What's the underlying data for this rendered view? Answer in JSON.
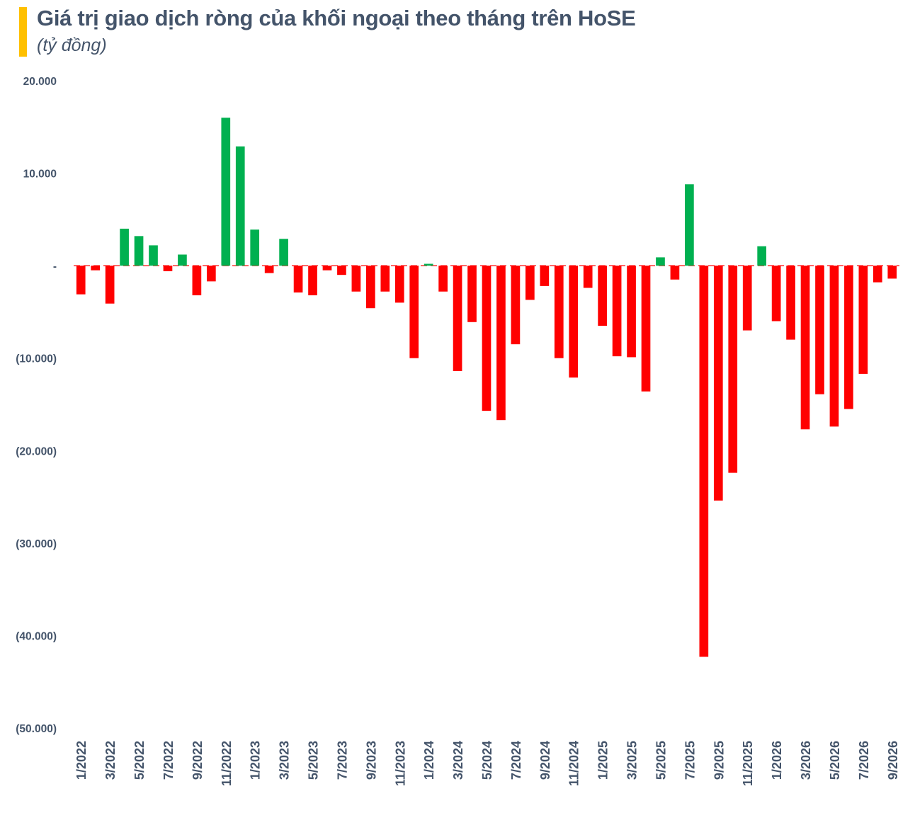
{
  "header": {
    "title": "Giá trị giao dịch ròng của khối ngoại theo tháng trên HoSE",
    "subtitle": "(tỷ đồng)"
  },
  "colors": {
    "accent_bar": "#FFC000",
    "positive": "#00B050",
    "negative": "#FF0000",
    "text": "#44546A"
  },
  "chart_data": {
    "type": "bar",
    "title": "Giá trị giao dịch ròng của khối ngoại theo tháng trên HoSE",
    "subtitle": "(tỷ đồng)",
    "ylim": [
      -50000,
      20000
    ],
    "yticks": [
      20000,
      10000,
      0,
      -10000,
      -20000,
      -30000,
      -40000,
      -50000
    ],
    "ytick_labels": [
      "20.000",
      "10.000",
      "-",
      "(10.000)",
      "(20.000)",
      "(30.000)",
      "(40.000)",
      "(50.000)"
    ],
    "grid": false,
    "legend": "none",
    "categories": [
      "1/2022",
      "2/2022",
      "3/2022",
      "4/2022",
      "5/2022",
      "6/2022",
      "7/2022",
      "8/2022",
      "9/2022",
      "10/2022",
      "11/2022",
      "12/2022",
      "1/2023",
      "2/2023",
      "3/2023",
      "4/2023",
      "5/2023",
      "6/2023",
      "7/2023",
      "8/2023",
      "9/2023",
      "10/2023",
      "11/2023",
      "12/2023",
      "1/2024",
      "2/2024",
      "3/2024",
      "4/2024",
      "5/2024",
      "6/2024",
      "7/2024",
      "8/2024",
      "9/2024",
      "10/2024",
      "11/2024",
      "12/2024",
      "1/2025",
      "2/2025",
      "3/2025",
      "4/2025",
      "5/2025",
      "6/2025",
      "7/2025",
      "8/2025",
      "9/2025",
      "10/2025",
      "11/2025",
      "12/2025",
      "1/2026",
      "2/2026",
      "3/2026",
      "4/2026",
      "5/2026",
      "6/2026",
      "7/2026",
      "8/2026",
      "9/2026"
    ],
    "visible_xtick_labels": [
      "1/2022",
      "3/2022",
      "5/2022",
      "7/2022",
      "9/2022",
      "11/2022",
      "1/2023",
      "3/2023",
      "5/2023",
      "7/2023",
      "9/2023",
      "11/2023",
      "1/2024",
      "3/2024",
      "5/2024",
      "7/2024",
      "9/2024",
      "11/2024",
      "1/2025",
      "3/2025",
      "5/2025",
      "7/2025",
      "9/2025",
      "11/2025",
      "1/2026",
      "3/2026",
      "5/2026",
      "7/2026",
      "9/2026"
    ],
    "values": [
      -3100,
      -500,
      -4100,
      4000,
      3200,
      2200,
      -600,
      1200,
      -3200,
      -1700,
      16000,
      12900,
      3900,
      -800,
      2900,
      -2900,
      -3200,
      -500,
      -1000,
      -2800,
      -4600,
      -2800,
      -4000,
      -10000,
      200,
      -2800,
      -11400,
      -6100,
      -15700,
      -16700,
      -8500,
      -3700,
      -2200,
      -10000,
      -12100,
      -2400,
      -6500,
      -9800,
      -9900,
      -13600,
      900,
      -1500,
      8800,
      -42300,
      -25400,
      -22400,
      -7000,
      2100,
      -6000,
      -8000,
      -17700,
      -13900,
      -17400,
      -15500,
      -11700,
      -1800,
      -1400
    ]
  }
}
